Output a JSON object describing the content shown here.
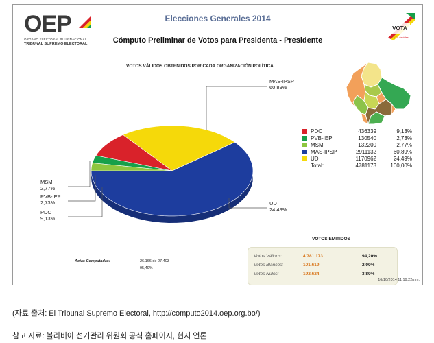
{
  "header": {
    "logo_text": "OEP",
    "logo_sub1": "ÓRGANO ELECTORAL PLURINACIONAL",
    "logo_sub2": "TRIBUNAL SUPREMO ELECTORAL",
    "title": "Elecciones Generales  2014",
    "subtitle": "Cómputo Preliminar de Votos para  Presidenta - Presidente",
    "vota_text": "VOTA",
    "vota_sub": "¡Tú decides!"
  },
  "chart_data": {
    "type": "pie",
    "title": "VOTOS VÁLIDOS OBTENIDOS POR CADA ORGANIZACIÓN POLÍTICA",
    "slices": [
      {
        "name": "MAS-IPSP",
        "votes": 2911132,
        "percent": 60.89,
        "pct_label": "60,89%",
        "color": "#1d3d9e"
      },
      {
        "name": "UD",
        "votes": 1170962,
        "percent": 24.49,
        "pct_label": "24,49%",
        "color": "#f5d90a"
      },
      {
        "name": "PDC",
        "votes": 436339,
        "percent": 9.13,
        "pct_label": "9,13%",
        "color": "#d9222a"
      },
      {
        "name": "PVB-IEP",
        "votes": 130540,
        "percent": 2.73,
        "pct_label": "2,73%",
        "color": "#16a04a"
      },
      {
        "name": "MSM",
        "votes": 132200,
        "percent": 2.77,
        "pct_label": "2,77%",
        "color": "#8dc63f"
      }
    ],
    "legend": [
      {
        "name": "PDC",
        "votes": "436339",
        "pct": "9,13%",
        "color": "#d9222a"
      },
      {
        "name": "PVB-IEP",
        "votes": "130540",
        "pct": "2,73%",
        "color": "#16a04a"
      },
      {
        "name": "MSM",
        "votes": "132200",
        "pct": "2,77%",
        "color": "#8dc63f"
      },
      {
        "name": "MAS-IPSP",
        "votes": "2911132",
        "pct": "60,89%",
        "color": "#1d3d9e"
      },
      {
        "name": "UD",
        "votes": "1170962",
        "pct": "24,49%",
        "color": "#f5d90a"
      }
    ],
    "total": {
      "name": "Total:",
      "votes": "4781173",
      "pct": "100,00%"
    }
  },
  "emitidos": {
    "title": "VOTOS EMITIDOS",
    "rows": [
      {
        "label": "Votos Válidos:",
        "value": "4.781.173",
        "pct": "94,20%"
      },
      {
        "label": "Votos Blancos:",
        "value": "101.619",
        "pct": "2,00%"
      },
      {
        "label": "Votos Nulos:",
        "value": "192.624",
        "pct": "3,80%"
      }
    ]
  },
  "actas": {
    "label": "Actas Computadas:",
    "value": "26.166 de 27.403",
    "pct": "95,49%"
  },
  "timestamp": "16/10/2014 11:19:22p.m.",
  "source": {
    "line1": "(자료 출처: El Tribunal Supremo Electoral, http://computo2014.oep.org.bo/)",
    "line2": "참고 자료: 볼리비아 선거관리 위원회 공식 홈페이지, 현지 언론"
  }
}
